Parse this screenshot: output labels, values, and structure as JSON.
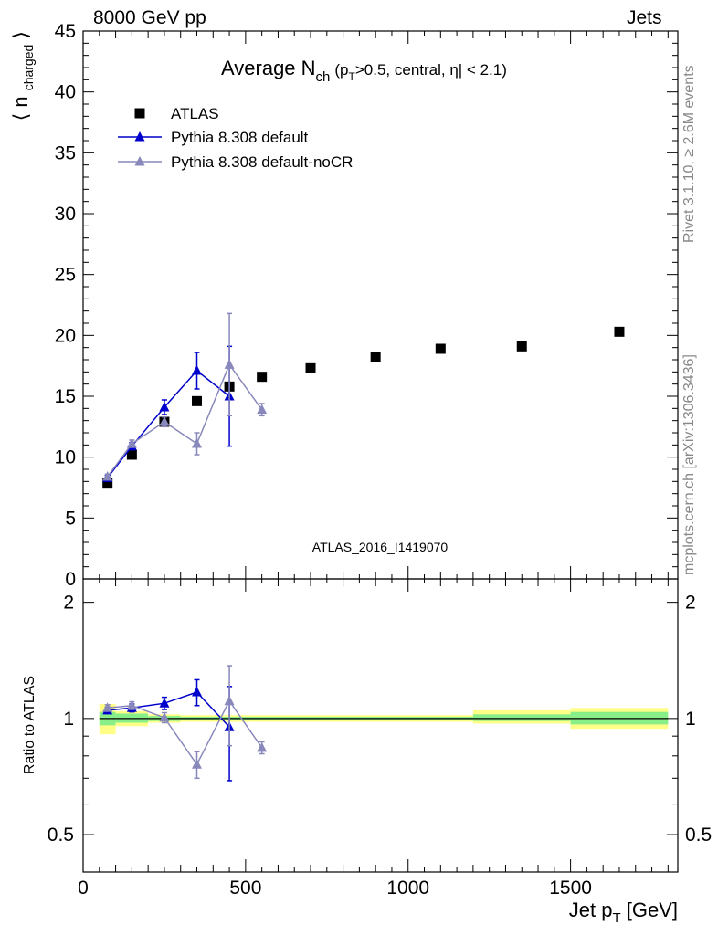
{
  "header": {
    "left": "8000 GeV pp",
    "right": "Jets"
  },
  "side_labels": {
    "rivet": "Rivet 3.1.10, ≥ 2.6M events",
    "source": "mcplots.cern.ch [arXiv:1306.3436]"
  },
  "chart_data": [
    {
      "type": "scatter",
      "title_main": "Average N",
      "title_sub": "ch",
      "title_tail": "(p",
      "title_tail_sub": "T",
      "title_tail_rest": ">0.5, central, η| < 2.1)",
      "ylabel_main": "⟨ n",
      "ylabel_sub": "charged",
      "ylabel_close": "⟩",
      "watermark": "ATLAS_2016_I1419070",
      "xlim": [
        0,
        1830
      ],
      "ylim": [
        0,
        45
      ],
      "yticks": [
        0,
        5,
        10,
        15,
        20,
        25,
        30,
        35,
        40,
        45
      ],
      "grid": false,
      "legend_position": "top-left",
      "series": [
        {
          "name": "ATLAS",
          "marker": "square",
          "color": "#000000",
          "x": [
            75,
            150,
            250,
            350,
            450,
            550,
            700,
            900,
            1100,
            1350,
            1650
          ],
          "y": [
            7.9,
            10.2,
            12.9,
            14.6,
            15.8,
            16.6,
            17.3,
            18.2,
            18.9,
            19.1,
            20.3
          ]
        },
        {
          "name": "Pythia 8.308 default",
          "marker": "triangle",
          "color": "#0000cc",
          "x": [
            75,
            150,
            250,
            350,
            450
          ],
          "y": [
            8.3,
            10.9,
            14.1,
            17.1,
            15.0
          ],
          "err": [
            0.2,
            0.3,
            0.6,
            1.5,
            4.1
          ]
        },
        {
          "name": "Pythia 8.308 default-noCR",
          "marker": "triangle",
          "color": "#8888bb",
          "x": [
            75,
            150,
            250,
            350,
            450,
            550
          ],
          "y": [
            8.4,
            11.1,
            12.9,
            11.1,
            17.6,
            13.9
          ],
          "err": [
            0.2,
            0.3,
            0.4,
            0.9,
            4.2,
            0.5
          ]
        }
      ]
    },
    {
      "type": "scatter",
      "ylabel": "Ratio to ATLAS",
      "xlabel_main": "Jet p",
      "xlabel_sub": "T",
      "xlabel_unit": "[GeV]",
      "xlim": [
        0,
        1830
      ],
      "ylim": [
        0.4,
        2.3
      ],
      "ytick_labels": [
        "0.5",
        "1",
        "2"
      ],
      "yticks": [
        0.5,
        1,
        2
      ],
      "xtick_labels": [
        "0",
        "500",
        "1000",
        "1500"
      ],
      "xticks": [
        0,
        500,
        1000,
        1500
      ],
      "reference_line": 1,
      "bands": [
        {
          "x0": 50,
          "x1": 100,
          "y1_lo": 0.96,
          "y1_hi": 1.04,
          "y2_lo": 0.91,
          "y2_hi": 1.09
        },
        {
          "x0": 100,
          "x1": 200,
          "y1_lo": 0.975,
          "y1_hi": 1.03,
          "y2_lo": 0.955,
          "y2_hi": 1.045
        },
        {
          "x0": 200,
          "x1": 300,
          "y1_lo": 0.985,
          "y1_hi": 1.015,
          "y2_lo": 0.975,
          "y2_hi": 1.025
        },
        {
          "x0": 300,
          "x1": 1200,
          "y1_lo": 0.99,
          "y1_hi": 1.01,
          "y2_lo": 0.98,
          "y2_hi": 1.02
        },
        {
          "x0": 1200,
          "x1": 1500,
          "y1_lo": 0.985,
          "y1_hi": 1.025,
          "y2_lo": 0.97,
          "y2_hi": 1.05
        },
        {
          "x0": 1500,
          "x1": 1800,
          "y1_lo": 0.965,
          "y1_hi": 1.04,
          "y2_lo": 0.94,
          "y2_hi": 1.065
        }
      ],
      "series": [
        {
          "name": "Pythia 8.308 default",
          "marker": "triangle",
          "color": "#0000cc",
          "x": [
            75,
            150,
            250,
            350,
            450
          ],
          "y": [
            1.05,
            1.065,
            1.095,
            1.17,
            0.95
          ],
          "err": [
            0.02,
            0.025,
            0.04,
            0.09,
            0.26
          ]
        },
        {
          "name": "Pythia 8.308 default-noCR",
          "marker": "triangle",
          "color": "#8888bb",
          "x": [
            75,
            150,
            250,
            350,
            450,
            550
          ],
          "y": [
            1.065,
            1.08,
            1.005,
            0.76,
            1.11,
            0.84
          ],
          "err": [
            0.02,
            0.025,
            0.03,
            0.06,
            0.26,
            0.03
          ]
        }
      ]
    }
  ]
}
